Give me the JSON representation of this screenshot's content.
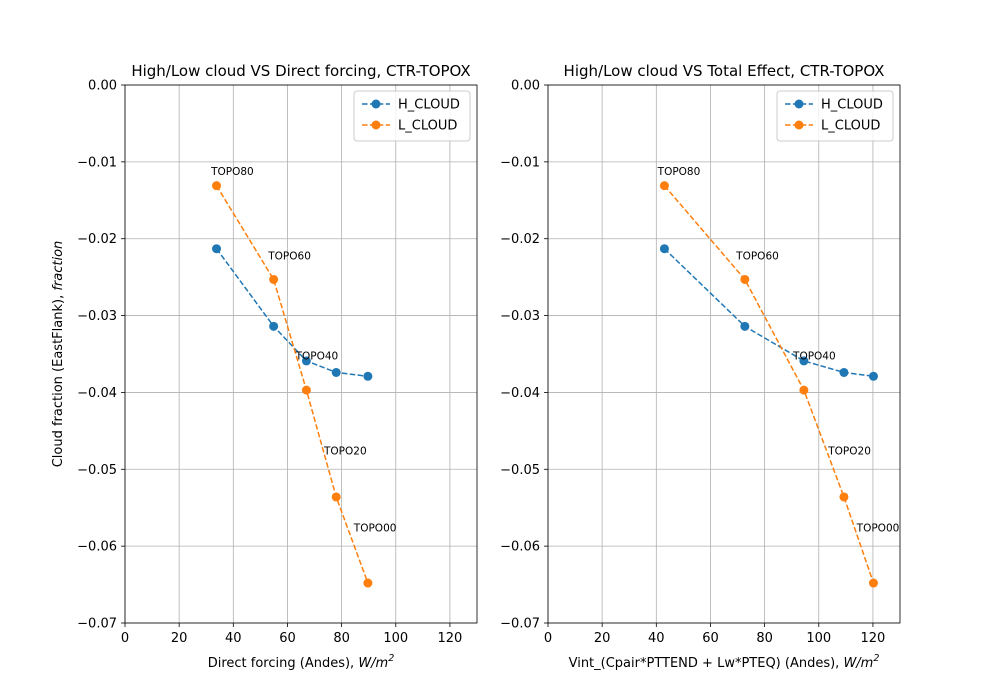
{
  "chart_data": [
    {
      "type": "line",
      "title": "High/Low cloud VS Direct forcing, CTR-TOPOX",
      "xlabel": "Direct forcing (Andes), ",
      "xlabel_unit": "W/m",
      "xlabel_exp": "2",
      "ylabel": "Cloud fraction (EastFlank), ",
      "ylabel_unit": "fraction",
      "xlim": [
        0,
        130
      ],
      "ylim": [
        -0.07,
        0.0
      ],
      "xticks": [
        0,
        20,
        40,
        60,
        80,
        100,
        120
      ],
      "yticks": [
        0.0,
        -0.01,
        -0.02,
        -0.03,
        -0.04,
        -0.05,
        -0.06,
        -0.07
      ],
      "xtick_labels": [
        "0",
        "20",
        "40",
        "60",
        "80",
        "100",
        "120"
      ],
      "ytick_labels": [
        "0.00",
        "−0.01",
        "−0.02",
        "−0.03",
        "−0.04",
        "−0.05",
        "−0.06",
        "−0.07"
      ],
      "grid": true,
      "legend_position": "top-right",
      "series": [
        {
          "name": "H_CLOUD",
          "color": "#1f77b4",
          "style": "dashed-marker",
          "x": [
            33.8,
            54.9,
            67.0,
            78.0,
            89.7
          ],
          "y": [
            -0.0213,
            -0.0314,
            -0.0359,
            -0.0374,
            -0.0379
          ]
        },
        {
          "name": "L_CLOUD",
          "color": "#ff7f0e",
          "style": "dashed-marker",
          "x": [
            33.8,
            54.9,
            67.0,
            78.0,
            89.7
          ],
          "y": [
            -0.0131,
            -0.0253,
            -0.0397,
            -0.0536,
            -0.0648
          ]
        }
      ],
      "annotations": [
        {
          "text": "TOPO80",
          "x": 31.8,
          "y": -0.0117
        },
        {
          "text": "TOPO60",
          "x": 52.9,
          "y": -0.0227
        },
        {
          "text": "TOPO40",
          "x": 63.0,
          "y": -0.0357
        },
        {
          "text": "TOPO20",
          "x": 73.5,
          "y": -0.0481
        },
        {
          "text": "TOPO00",
          "x": 84.5,
          "y": -0.0581
        }
      ]
    },
    {
      "type": "line",
      "title": "High/Low cloud VS Total Effect, CTR-TOPOX",
      "xlabel": "Vint_(Cpair*PTTEND + Lw*PTEQ) (Andes), ",
      "xlabel_unit": "W/m",
      "xlabel_exp": "2",
      "ylabel": "",
      "ylabel_unit": "",
      "xlim": [
        0,
        130
      ],
      "ylim": [
        -0.07,
        0.0
      ],
      "xticks": [
        0,
        20,
        40,
        60,
        80,
        100,
        120
      ],
      "yticks": [
        0.0,
        -0.01,
        -0.02,
        -0.03,
        -0.04,
        -0.05,
        -0.06,
        -0.07
      ],
      "xtick_labels": [
        "0",
        "20",
        "40",
        "60",
        "80",
        "100",
        "120"
      ],
      "ytick_labels": [
        "0.00",
        "−0.01",
        "−0.02",
        "−0.03",
        "−0.04",
        "−0.05",
        "−0.06",
        "−0.07"
      ],
      "grid": true,
      "legend_position": "top-right",
      "series": [
        {
          "name": "H_CLOUD",
          "color": "#1f77b4",
          "style": "dashed-marker",
          "x": [
            43.0,
            72.7,
            94.5,
            109.3,
            120.2
          ],
          "y": [
            -0.0213,
            -0.0314,
            -0.0359,
            -0.0374,
            -0.0379
          ]
        },
        {
          "name": "L_CLOUD",
          "color": "#ff7f0e",
          "style": "dashed-marker",
          "x": [
            43.0,
            72.7,
            94.5,
            109.3,
            120.2
          ],
          "y": [
            -0.0131,
            -0.0253,
            -0.0397,
            -0.0536,
            -0.0648
          ]
        }
      ],
      "annotations": [
        {
          "text": "TOPO80",
          "x": 40.5,
          "y": -0.0117
        },
        {
          "text": "TOPO60",
          "x": 69.5,
          "y": -0.0227
        },
        {
          "text": "TOPO40",
          "x": 90.5,
          "y": -0.0357
        },
        {
          "text": "TOPO20",
          "x": 103.5,
          "y": -0.0481
        },
        {
          "text": "TOPO00",
          "x": 114.0,
          "y": -0.0581
        }
      ]
    }
  ]
}
